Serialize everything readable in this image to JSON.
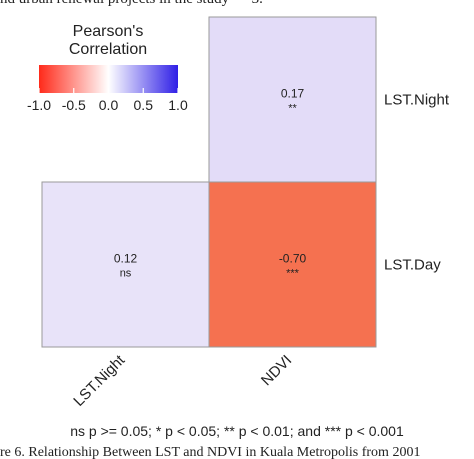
{
  "top_caption": "nd urban renewal projects in the study — 3.",
  "bottom_caption": "re 6. Relationship Between LST and NDVI in Kuala Metropolis from 2001",
  "significance_note": "ns p >= 0.05; * p < 0.05; ** p < 0.01; and *** p < 0.001",
  "chart_data": {
    "type": "heatmap",
    "title": "",
    "x_labels": [
      "LST.Night",
      "NDVI"
    ],
    "y_labels": [
      "LST.Night",
      "LST.Day"
    ],
    "cells": [
      {
        "x": "NDVI",
        "y": "LST.Night",
        "value": 0.17,
        "label": "0.17",
        "sig": "**",
        "color": "#e3dcf8"
      },
      {
        "x": "LST.Night",
        "y": "LST.Day",
        "value": 0.12,
        "label": "0.12",
        "sig": "ns",
        "color": "#e8e3f9"
      },
      {
        "x": "NDVI",
        "y": "LST.Day",
        "value": -0.7,
        "label": "-0.70",
        "sig": "***",
        "color": "#f57150"
      }
    ],
    "legend": {
      "title_line1": "Pearson's",
      "title_line2": "Correlation",
      "ticks": [
        "-1.0",
        "-0.5",
        "0.0",
        "0.5",
        "1.0"
      ],
      "colors": {
        "low": "#ff2a1a",
        "mid": "#ffffff",
        "high": "#2f1fe6"
      },
      "range": [
        -1.0,
        1.0
      ],
      "placement": "top-left"
    }
  }
}
